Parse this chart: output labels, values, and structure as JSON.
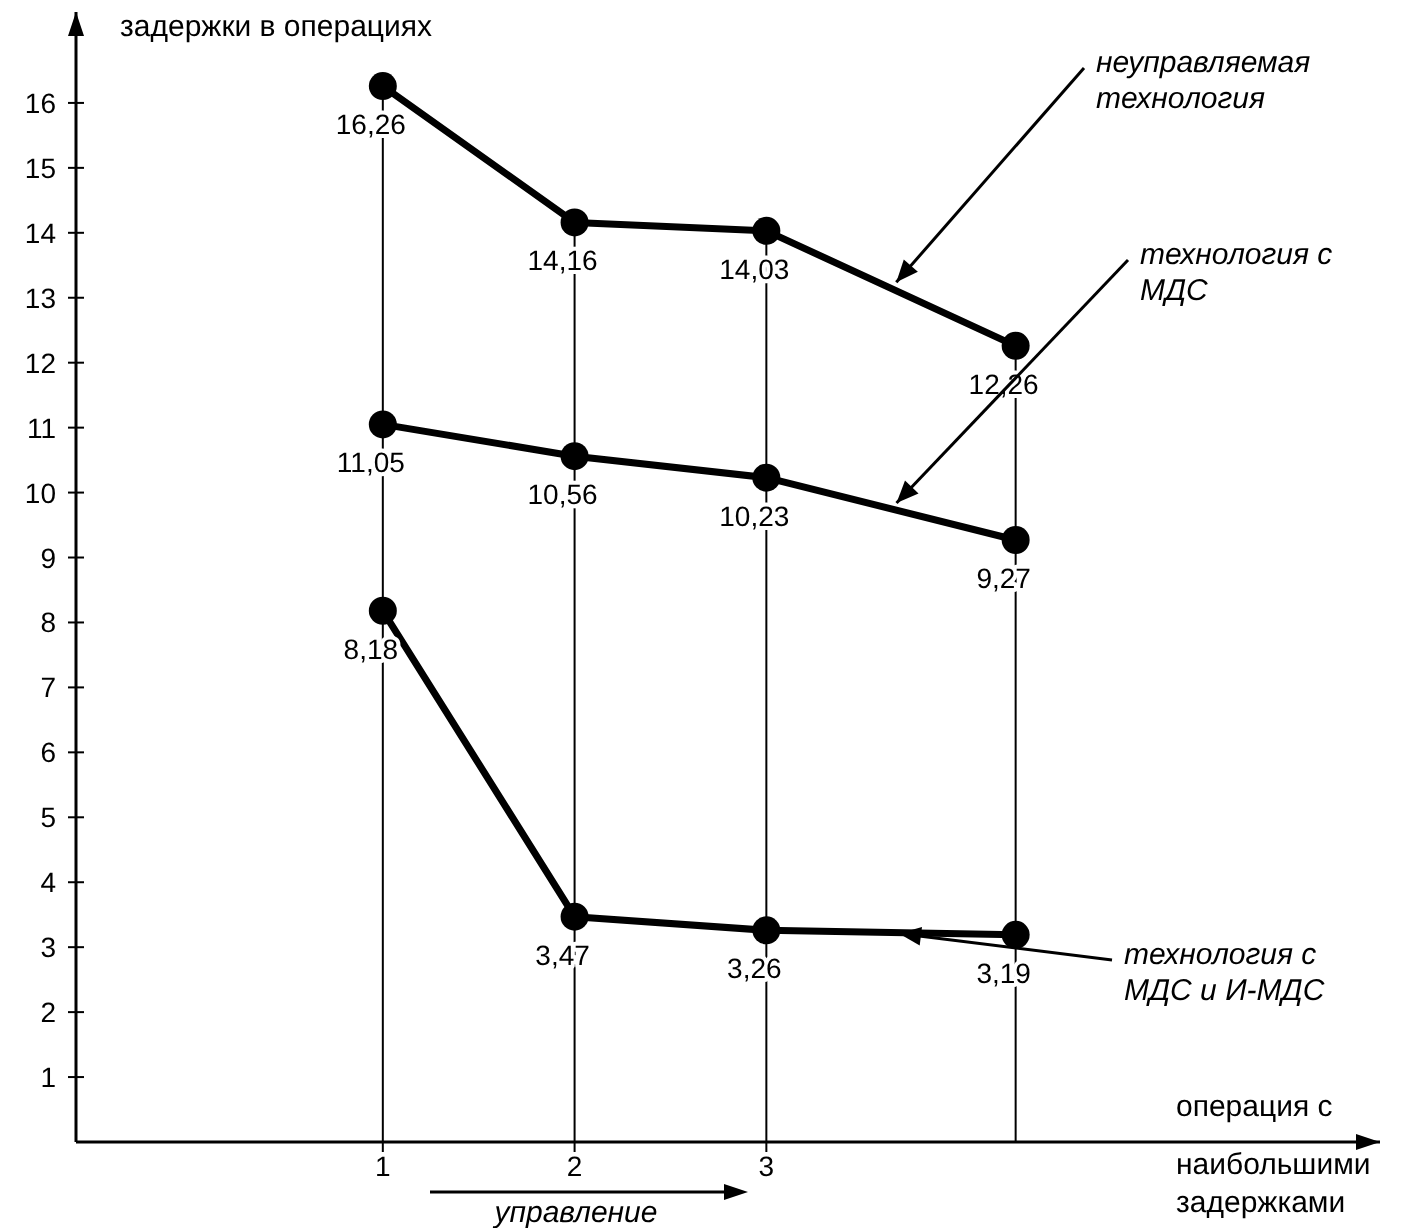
{
  "chart_data": {
    "type": "line",
    "ylabel": "задержки в операциях",
    "xlabel": "операция с наибольшими задержками",
    "x": [
      1,
      2,
      3,
      4.3
    ],
    "xlim": [
      -0.6,
      6.2
    ],
    "xticks": [
      1,
      2,
      3
    ],
    "ylim": [
      0,
      17.4
    ],
    "yticks": [
      1,
      2,
      3,
      4,
      5,
      6,
      7,
      8,
      9,
      10,
      11,
      12,
      13,
      14,
      15,
      16
    ],
    "grid": "x",
    "marker": "circle",
    "line_style": "solid",
    "annotations": [
      "управление"
    ],
    "series": [
      {
        "name": "неуправляемая технология",
        "color": "#000000",
        "values": [
          16.26,
          14.16,
          14.03,
          12.26
        ],
        "value_labels": [
          "16,26",
          "14,16",
          "14,03",
          "12,26"
        ]
      },
      {
        "name": "технология с МДС",
        "color": "#000000",
        "values": [
          11.05,
          10.56,
          10.23,
          9.27
        ],
        "value_labels": [
          "11,05",
          "10,56",
          "10,23",
          "9,27"
        ]
      },
      {
        "name": "технология с МДС и И-МДС",
        "color": "#000000",
        "values": [
          8.18,
          3.47,
          3.26,
          3.19
        ],
        "value_labels": [
          "8,18",
          "3,47",
          "3,26",
          "3,19"
        ]
      }
    ]
  }
}
